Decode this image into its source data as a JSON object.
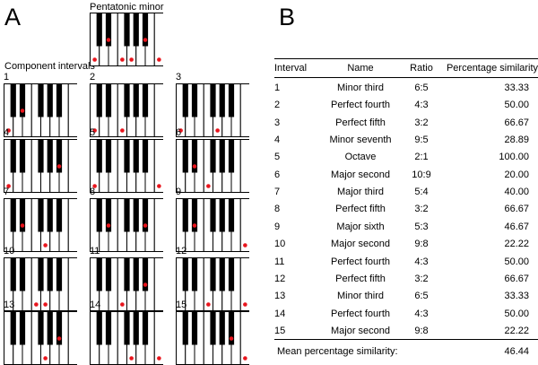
{
  "panel_labels": {
    "a": "A",
    "b": "B"
  },
  "pentatonic": {
    "title": "Pentatonic minor",
    "dots": [
      0,
      3,
      5,
      7,
      10,
      12
    ]
  },
  "component_title": "Component intervals",
  "keyboards": [
    {
      "label": "1",
      "dots": [
        0,
        3
      ]
    },
    {
      "label": "2",
      "dots": [
        0,
        5
      ]
    },
    {
      "label": "3",
      "dots": [
        0,
        7
      ]
    },
    {
      "label": "4",
      "dots": [
        0,
        10
      ]
    },
    {
      "label": "5",
      "dots": [
        0,
        12
      ]
    },
    {
      "label": "6",
      "dots": [
        3,
        5
      ]
    },
    {
      "label": "7",
      "dots": [
        3,
        7
      ]
    },
    {
      "label": "8",
      "dots": [
        3,
        10
      ]
    },
    {
      "label": "9",
      "dots": [
        3,
        12
      ]
    },
    {
      "label": "10",
      "dots": [
        5,
        7
      ]
    },
    {
      "label": "11",
      "dots": [
        5,
        10
      ]
    },
    {
      "label": "12",
      "dots": [
        5,
        12
      ]
    },
    {
      "label": "13",
      "dots": [
        7,
        10
      ]
    },
    {
      "label": "14",
      "dots": [
        7,
        12
      ]
    },
    {
      "label": "15",
      "dots": [
        10,
        12
      ]
    }
  ],
  "dot_color": "#e8141c",
  "table": {
    "headers": {
      "interval": "Interval",
      "name": "Name",
      "ratio": "Ratio",
      "similarity": "Percentage similarity"
    },
    "rows": [
      {
        "interval": "1",
        "name": "Minor third",
        "ratio": "6:5",
        "similarity": "33.33"
      },
      {
        "interval": "2",
        "name": "Perfect fourth",
        "ratio": "4:3",
        "similarity": "50.00"
      },
      {
        "interval": "3",
        "name": "Perfect fifth",
        "ratio": "3:2",
        "similarity": "66.67"
      },
      {
        "interval": "4",
        "name": "Minor seventh",
        "ratio": "9:5",
        "similarity": "28.89"
      },
      {
        "interval": "5",
        "name": "Octave",
        "ratio": "2:1",
        "similarity": "100.00"
      },
      {
        "interval": "6",
        "name": "Major second",
        "ratio": "10:9",
        "similarity": "20.00"
      },
      {
        "interval": "7",
        "name": "Major third",
        "ratio": "5:4",
        "similarity": "40.00"
      },
      {
        "interval": "8",
        "name": "Perfect fifth",
        "ratio": "3:2",
        "similarity": "66.67"
      },
      {
        "interval": "9",
        "name": "Major sixth",
        "ratio": "5:3",
        "similarity": "46.67"
      },
      {
        "interval": "10",
        "name": "Major second",
        "ratio": "9:8",
        "similarity": "22.22"
      },
      {
        "interval": "11",
        "name": "Perfect fourth",
        "ratio": "4:3",
        "similarity": "50.00"
      },
      {
        "interval": "12",
        "name": "Perfect fifth",
        "ratio": "3:2",
        "similarity": "66.67"
      },
      {
        "interval": "13",
        "name": "Minor third",
        "ratio": "6:5",
        "similarity": "33.33"
      },
      {
        "interval": "14",
        "name": "Perfect fourth",
        "ratio": "4:3",
        "similarity": "50.00"
      },
      {
        "interval": "15",
        "name": "Major second",
        "ratio": "9:8",
        "similarity": "22.22"
      }
    ],
    "mean_label": "Mean percentage similarity:",
    "mean_value": "46.44"
  }
}
